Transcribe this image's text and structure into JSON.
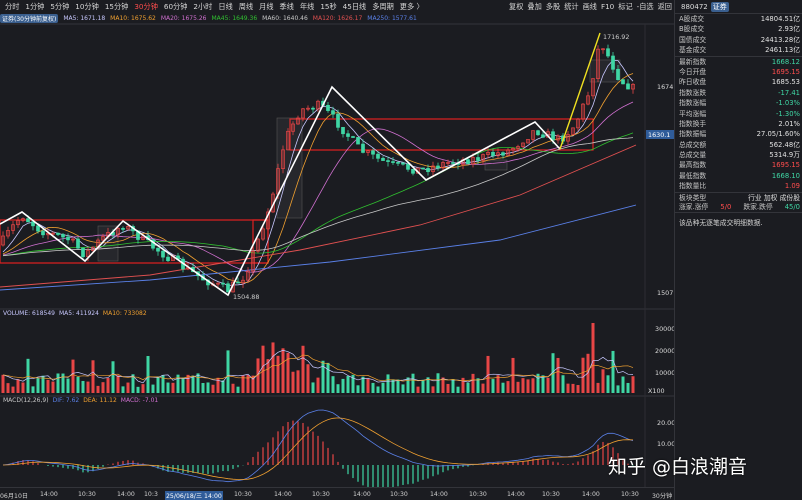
{
  "toolbar": {
    "periods": [
      "分时",
      "1分钟",
      "5分钟",
      "10分钟",
      "15分钟",
      "30分钟",
      "60分钟",
      "2小时",
      "日线",
      "周线",
      "月线",
      "季线",
      "年线",
      "15秒",
      "45日线",
      "多周期",
      "更多 〉"
    ],
    "active_index": 5,
    "right": [
      "复权",
      "叠加",
      "多股",
      "统计",
      "画线",
      "F10",
      "标记",
      "-自选",
      "返回"
    ]
  },
  "ma_legend": {
    "tag": "证券(30分钟前复权)",
    "items": [
      {
        "label": "MA5: 1671.18",
        "color": "#c8c8ff"
      },
      {
        "label": "MA10: 1675.62",
        "color": "#f0a030"
      },
      {
        "label": "MA20: 1675.26",
        "color": "#d070d0"
      },
      {
        "label": "MA45: 1649.36",
        "color": "#30c030"
      },
      {
        "label": "MA60: 1640.46",
        "color": "#c8c8c8"
      },
      {
        "label": "MA120: 1626.17",
        "color": "#e05050"
      },
      {
        "label": "MA250: 1577.61",
        "color": "#5a80e8"
      }
    ]
  },
  "price_axis": {
    "label_1674": "1674",
    "label_1630": "1630.1",
    "label_1507": "1507",
    "high_mark": "1716.92",
    "low_mark": "1504.88"
  },
  "volume": {
    "legend": [
      {
        "label": "VOLUME: 618549",
        "color": "#c8c8ff"
      },
      {
        "label": "MA5: 411924",
        "color": "#c8c8ff"
      },
      {
        "label": "MA10: 733082",
        "color": "#f0a030"
      }
    ],
    "axis": [
      "30000",
      "20000",
      "10000",
      "X100"
    ]
  },
  "macd": {
    "legend": [
      {
        "label": "MACD(12,26,9)",
        "color": "#c8c8c8"
      },
      {
        "label": "DIF: 7.62",
        "color": "#5a80e8"
      },
      {
        "label": "DEA: 11.12",
        "color": "#f0a030"
      },
      {
        "label": "MACD: -7.01",
        "color": "#d070d0"
      }
    ],
    "axis": [
      "20.00",
      "10.00"
    ]
  },
  "time_axis": [
    "06月10日",
    "14:00",
    "10:30",
    "14:00",
    "10:3",
    "25/06/18/三 14:00",
    "10:30",
    "14:00",
    "10:30",
    "14:00",
    "10:30",
    "14:00",
    "10:30",
    "14:00",
    "10:30",
    "14:00",
    "10:30",
    "30分钟"
  ],
  "panel": {
    "code": "880472",
    "name": "证券",
    "rows1": [
      {
        "l": "A股成交",
        "v": "14804.51亿",
        "c": "#e0e0e0"
      },
      {
        "l": "B股成交",
        "v": "2.93亿",
        "c": "#e0e0e0"
      },
      {
        "l": "国债成交",
        "v": "24413.28亿",
        "c": "#e0e0e0"
      },
      {
        "l": "基金成交",
        "v": "2461.13亿",
        "c": "#e0e0e0"
      }
    ],
    "rows2": [
      {
        "l": "最新指数",
        "v": "1668.12",
        "c": "#3fd6a4"
      },
      {
        "l": "今日开盘",
        "v": "1695.15",
        "c": "#ff4d4d"
      },
      {
        "l": "昨日收盘",
        "v": "1685.53",
        "c": "#e0e0e0"
      },
      {
        "l": "指数涨跌",
        "v": "-17.41",
        "c": "#3fd6a4"
      },
      {
        "l": "指数涨幅",
        "v": "-1.03%",
        "c": "#3fd6a4"
      },
      {
        "l": "平均涨幅",
        "v": "-1.30%",
        "c": "#3fd6a4"
      },
      {
        "l": "指数换手",
        "v": "2.01%",
        "c": "#e0e0e0"
      },
      {
        "l": "指数振幅",
        "v": "27.05/1.60%",
        "c": "#e0e0e0"
      },
      {
        "l": "总成交额",
        "v": "562.48亿",
        "c": "#e0e0e0"
      },
      {
        "l": "总成交量",
        "v": "5314.9万",
        "c": "#e0e0e0"
      },
      {
        "l": "最高指数",
        "v": "1695.15",
        "c": "#ff4d4d"
      },
      {
        "l": "最低指数",
        "v": "1668.10",
        "c": "#3fd6a4"
      },
      {
        "l": "指数量比",
        "v": "1.09",
        "c": "#ff4d4d"
      }
    ],
    "type_label": "板块类型",
    "type_value": "行业 加权 成份股",
    "up_label": "涨家.涨停",
    "up_value": "5/0",
    "down_label": "跌家.跌停",
    "down_value": "45/0",
    "note": "该品种无逐笔成交明细数据."
  },
  "watermark": "知乎 @白浪潮音",
  "colors": {
    "up": "#e84646",
    "down": "#3fd6a4",
    "box": "#e02020",
    "zigzag": "#ffffff",
    "trend": "#f0e020"
  }
}
